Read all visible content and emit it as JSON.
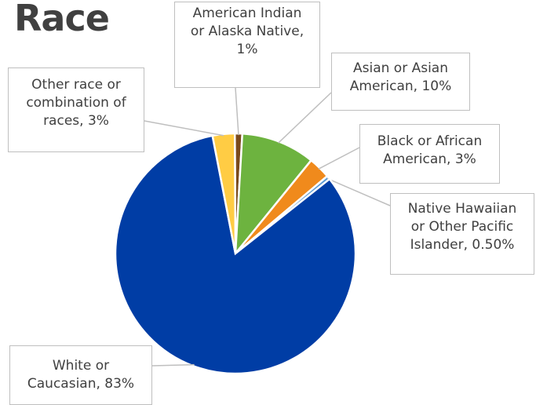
{
  "chart_data": {
    "type": "pie",
    "title": "Race",
    "slices": [
      {
        "label": [
          "American Indian",
          "or Alaska Native,",
          "1%"
        ],
        "name": "American Indian or Alaska Native",
        "value": 1,
        "color": "#7a4a1c"
      },
      {
        "label": [
          "Asian or Asian",
          "American, 10%"
        ],
        "name": "Asian or Asian American",
        "value": 10,
        "color": "#6db33f"
      },
      {
        "label": [
          "Black or African",
          "American, 3%"
        ],
        "name": "Black or African American",
        "value": 3,
        "color": "#f08a1c"
      },
      {
        "label": [
          "Native Hawaiian",
          "or Other Pacific",
          "Islander, 0.50%"
        ],
        "name": "Native Hawaiian or Other Pacific Islander",
        "value": 0.5,
        "color": "#5b9bd5"
      },
      {
        "label": [
          "White or",
          "Caucasian, 83%"
        ],
        "name": "White or Caucasian",
        "value": 83,
        "color": "#003da5"
      },
      {
        "label": [
          "Other race or",
          "combination of",
          "races, 3%"
        ],
        "name": "Other race or combination of races",
        "value": 3,
        "color": "#ffcc44"
      }
    ],
    "legend": "none"
  }
}
